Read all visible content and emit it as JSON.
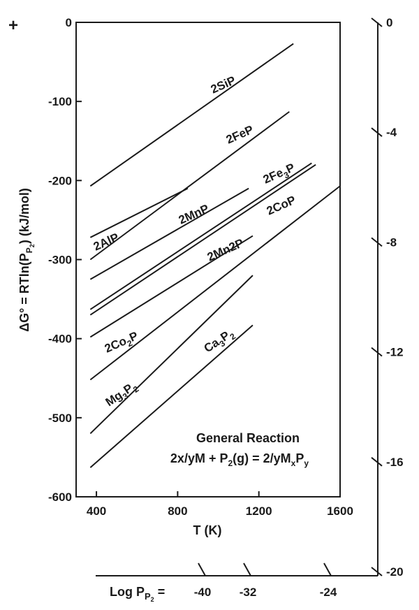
{
  "chart_data": {
    "type": "line",
    "xlabel": "T (K)",
    "ylabel_parts": {
      "main": "ΔG° = RTln(P",
      "sub1": "P",
      "sub2": "2",
      "close": ")  (kJ/mol)"
    },
    "corner_mark": "+",
    "xlim": [
      300,
      1600
    ],
    "ylim": [
      -600,
      0
    ],
    "x_ticks": [
      "400",
      "800",
      "1200",
      "1600"
    ],
    "y_ticks": [
      "0",
      "-100",
      "-200",
      "-300",
      "-400",
      "-500",
      "-600"
    ],
    "right_axis": {
      "ticks": [
        "0",
        "-4",
        "-8",
        "-12",
        "-16",
        "-20"
      ]
    },
    "bottom_axis": {
      "label_main": "Log P",
      "label_sub1": "P",
      "label_sub2": "2",
      "label_eq": " =",
      "ticks": [
        "-40",
        "-32",
        "-24"
      ]
    },
    "series": [
      {
        "name": "2SiP",
        "label": {
          "pre": "2SiP"
        },
        "x": [
          370,
          1370
        ],
        "y": [
          -207,
          -27
        ]
      },
      {
        "name": "2FeP",
        "label": {
          "pre": "2FeP"
        },
        "x": [
          370,
          1350
        ],
        "y": [
          -300,
          -113
        ]
      },
      {
        "name": "2AlP",
        "label": {
          "pre": "2AlP"
        },
        "x": [
          370,
          850
        ],
        "y": [
          -272,
          -210
        ]
      },
      {
        "name": "2MnP",
        "label": {
          "pre": "2MnP"
        },
        "x": [
          370,
          1150
        ],
        "y": [
          -325,
          -210
        ]
      },
      {
        "name": "2Fe3P",
        "label": {
          "pre": "2Fe",
          "sub": "3",
          "post": "P"
        },
        "x": [
          370,
          1460
        ],
        "y": [
          -363,
          -178
        ]
      },
      {
        "name": "2CoP",
        "label": {
          "pre": "2CoP"
        },
        "x": [
          370,
          1480
        ],
        "y": [
          -370,
          -180
        ]
      },
      {
        "name": "2Mn2P",
        "label": {
          "pre": "2Mn2P"
        },
        "x": [
          370,
          1170
        ],
        "y": [
          -398,
          -270
        ]
      },
      {
        "name": "2Co2P",
        "label": {
          "pre": "2Co",
          "sub": "2",
          "post": "P"
        },
        "x": [
          370,
          1600
        ],
        "y": [
          -452,
          -207
        ]
      },
      {
        "name": "Mg3P2",
        "label": {
          "pre": "Mg",
          "sub": "3",
          "post": "P",
          "sub2": "2"
        },
        "x": [
          370,
          1170
        ],
        "y": [
          -520,
          -320
        ]
      },
      {
        "name": "Ca3P2",
        "label": {
          "pre": "Ca",
          "sub": "3",
          "post": "P",
          "sub2": "2"
        },
        "x": [
          370,
          1170
        ],
        "y": [
          -563,
          -383
        ]
      }
    ],
    "annotation": {
      "line1": "General Reaction",
      "line2_a": "2x/yM + P",
      "line2_b": "2",
      "line2_c": "(g) = 2/yM",
      "line2_d": "x",
      "line2_e": "P",
      "line2_f": "y"
    }
  }
}
